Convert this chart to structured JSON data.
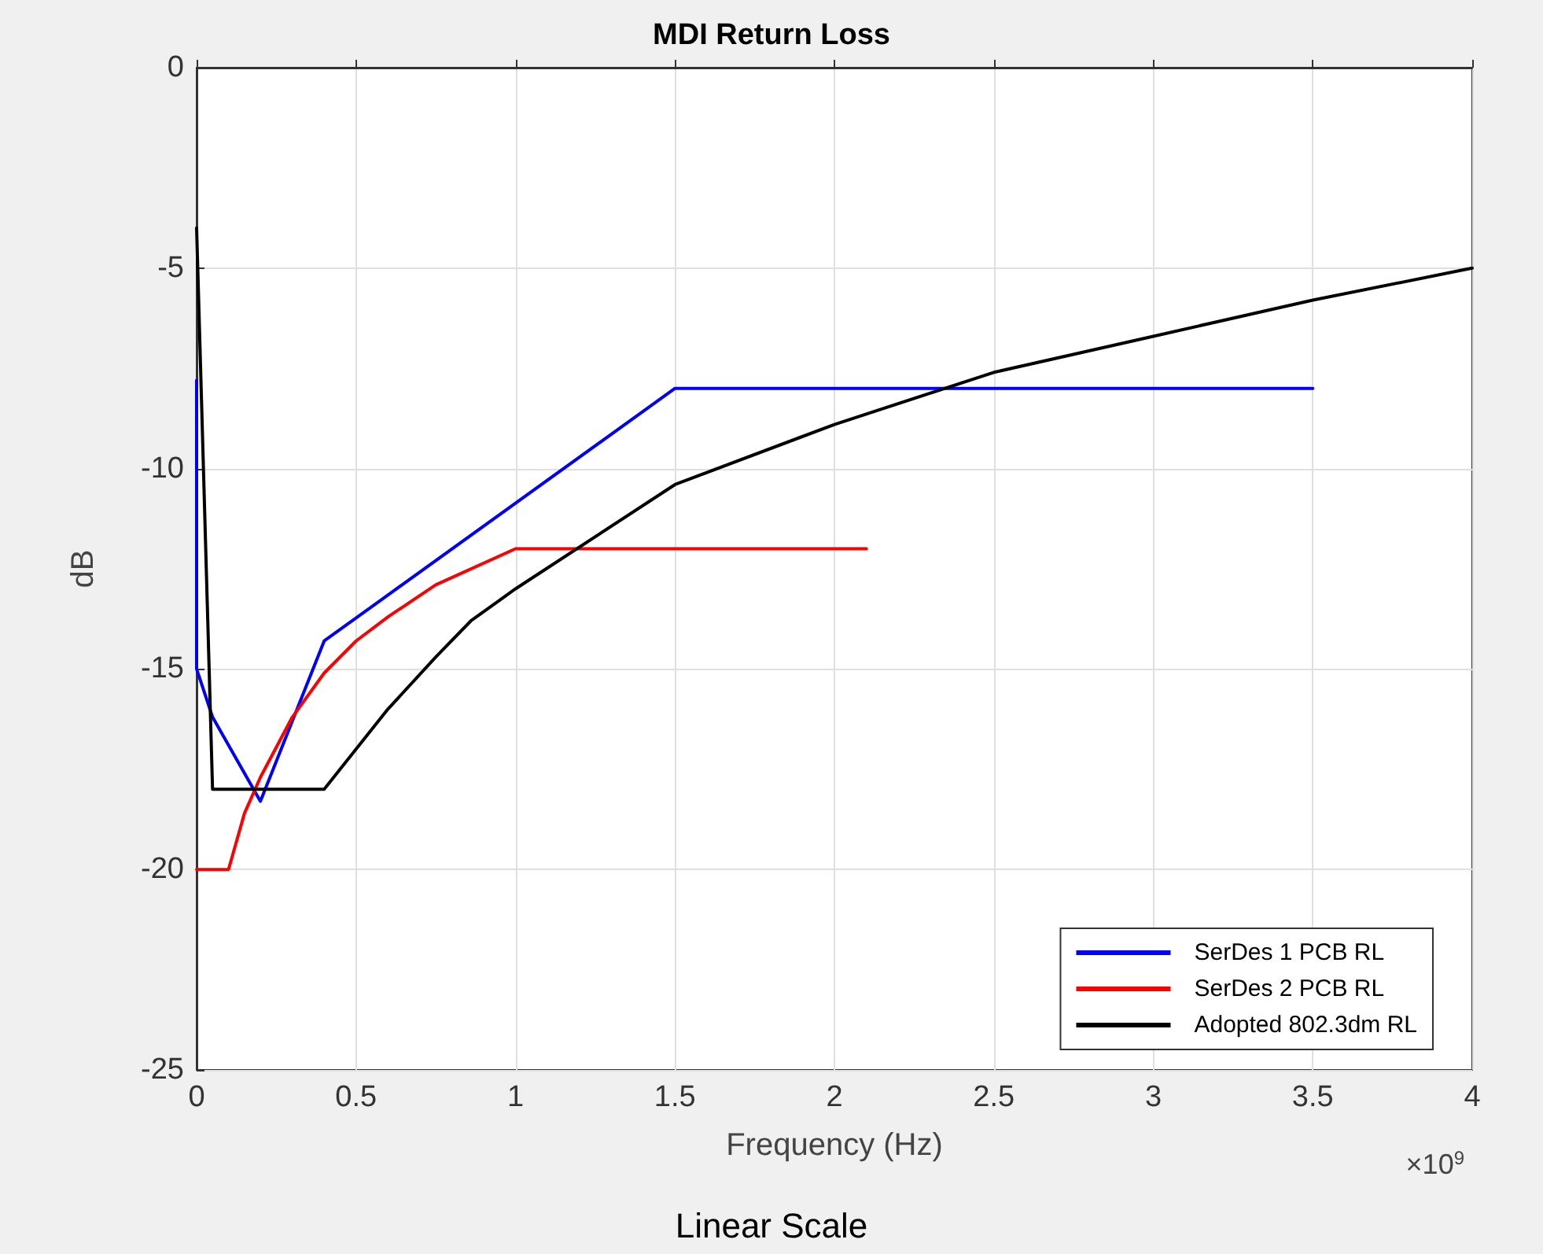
{
  "chart_data": {
    "type": "line",
    "title": "MDI Return Loss",
    "xlabel": "Frequency (Hz)",
    "ylabel": "dB",
    "annotations": [
      "×10$^{9}$",
      "Linear Scale"
    ],
    "series": [
      {
        "name": "SerDes 1 PCB RL",
        "color": "#0000ff",
        "x": [
          0,
          0,
          0.05,
          0.2,
          0.4,
          1.5,
          3.5
        ],
        "values": [
          -7.8,
          -15,
          -16.2,
          -18.3,
          -14.3,
          -8,
          -8
        ]
      },
      {
        "name": "SerDes 2 PCB RL",
        "color": "#ff0000",
        "x": [
          0,
          0.1,
          0.15,
          0.2,
          0.3,
          0.4,
          0.5,
          0.6,
          0.75,
          1,
          2.1
        ],
        "values": [
          -20,
          -20,
          -18.6,
          -17.7,
          -16.2,
          -15.1,
          -14.3,
          -13.7,
          -12.9,
          -12,
          -12
        ]
      },
      {
        "name": "Adopted 802.3dm RL",
        "color": "#000000",
        "x": [
          0,
          0.05,
          0.4,
          0.5,
          0.6,
          0.75,
          0.86,
          1,
          1.5,
          2,
          2.5,
          3,
          3.5,
          4
        ],
        "values": [
          -4,
          -18,
          -18,
          -17,
          -16,
          -14.7,
          -13.8,
          -13,
          -10.4,
          -8.9,
          -7.6,
          -6.7,
          -5.8,
          -5
        ]
      }
    ],
    "xlim": [
      0,
      4
    ],
    "xticks": [
      0,
      0.5,
      1,
      1.5,
      2,
      2.5,
      3,
      3.5,
      4
    ],
    "ylim": [
      -25,
      0
    ],
    "yticks": [
      -25,
      -20,
      -15,
      -10,
      -5,
      0
    ],
    "grid": true,
    "legend": "bottom right",
    "marker": "none",
    "line_style": "solid"
  }
}
